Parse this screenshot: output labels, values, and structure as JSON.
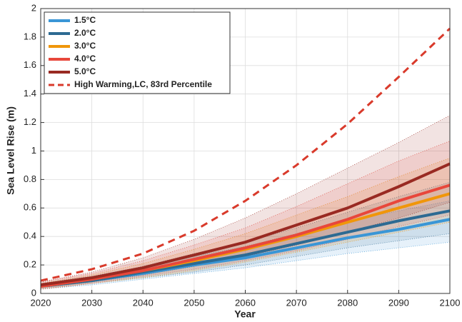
{
  "chart_data": {
    "type": "line",
    "xlabel": "Year",
    "ylabel": "Sea Level Rise (m)",
    "x": [
      2020,
      2030,
      2040,
      2050,
      2060,
      2070,
      2080,
      2090,
      2100
    ],
    "xlim": [
      2020,
      2100
    ],
    "xticks": [
      2020,
      2030,
      2040,
      2050,
      2060,
      2070,
      2080,
      2090,
      2100
    ],
    "ylim": [
      0,
      2
    ],
    "yticks": [
      0,
      0.2,
      0.4,
      0.6,
      0.8,
      1,
      1.2,
      1.4,
      1.6,
      1.8,
      2
    ],
    "grid": true,
    "legend": "upper left",
    "series": [
      {
        "name": "1.5°C",
        "color": "#3a96d6",
        "values": [
          0.05,
          0.09,
          0.14,
          0.2,
          0.25,
          0.32,
          0.39,
          0.45,
          0.52
        ],
        "lower": [
          0.03,
          0.06,
          0.1,
          0.14,
          0.18,
          0.23,
          0.28,
          0.32,
          0.36
        ],
        "upper": [
          0.07,
          0.12,
          0.18,
          0.26,
          0.33,
          0.42,
          0.51,
          0.58,
          0.65
        ]
      },
      {
        "name": "2.0°C",
        "color": "#2d6a92",
        "values": [
          0.05,
          0.09,
          0.15,
          0.21,
          0.27,
          0.35,
          0.43,
          0.51,
          0.58
        ],
        "lower": [
          0.03,
          0.07,
          0.11,
          0.15,
          0.2,
          0.26,
          0.32,
          0.37,
          0.42
        ],
        "upper": [
          0.07,
          0.12,
          0.19,
          0.28,
          0.36,
          0.46,
          0.57,
          0.68,
          0.78
        ]
      },
      {
        "name": "3.0°C",
        "color": "#f0960a",
        "values": [
          0.05,
          0.1,
          0.16,
          0.23,
          0.31,
          0.4,
          0.5,
          0.6,
          0.7
        ],
        "lower": [
          0.03,
          0.07,
          0.11,
          0.16,
          0.22,
          0.29,
          0.36,
          0.43,
          0.5
        ],
        "upper": [
          0.07,
          0.13,
          0.21,
          0.31,
          0.42,
          0.55,
          0.68,
          0.82,
          0.95
        ]
      },
      {
        "name": "4.0°C",
        "color": "#e8473b",
        "values": [
          0.05,
          0.1,
          0.16,
          0.24,
          0.32,
          0.41,
          0.52,
          0.65,
          0.76
        ],
        "lower": [
          0.03,
          0.07,
          0.12,
          0.17,
          0.23,
          0.3,
          0.38,
          0.47,
          0.55
        ],
        "upper": [
          0.08,
          0.14,
          0.23,
          0.34,
          0.46,
          0.61,
          0.77,
          0.93,
          1.07
        ]
      },
      {
        "name": "5.0°C",
        "color": "#992a22",
        "values": [
          0.06,
          0.11,
          0.18,
          0.27,
          0.36,
          0.48,
          0.6,
          0.75,
          0.91
        ],
        "lower": [
          0.04,
          0.08,
          0.13,
          0.19,
          0.26,
          0.34,
          0.43,
          0.53,
          0.64
        ],
        "upper": [
          0.08,
          0.15,
          0.25,
          0.38,
          0.53,
          0.7,
          0.88,
          1.06,
          1.25
        ]
      },
      {
        "name": "High Warming,LC, 83rd Percentile",
        "color": "#d93a2b",
        "dashed": true,
        "values": [
          0.09,
          0.17,
          0.28,
          0.44,
          0.65,
          0.9,
          1.19,
          1.52,
          1.86
        ]
      }
    ]
  }
}
